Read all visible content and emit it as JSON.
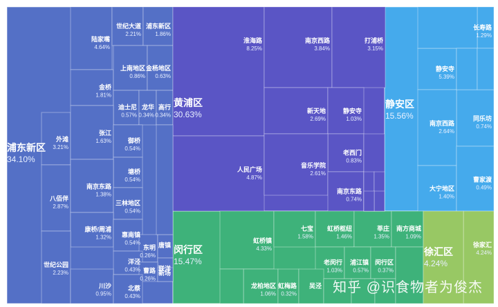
{
  "chart_data": {
    "type": "treemap",
    "groups": [
      {
        "name": "浦东新区",
        "value": "34.10%",
        "color": "#5470c6",
        "children": [
          {
            "name": "陆家嘴",
            "value": "4.64%"
          },
          {
            "name": "世纪大道",
            "value": "2.21%"
          },
          {
            "name": "浦东新区",
            "value": "1.86%"
          },
          {
            "name": "外滩",
            "value": "3.21%"
          },
          {
            "name": "金桥",
            "value": "1.81%"
          },
          {
            "name": "上南地区",
            "value": "0.86%"
          },
          {
            "name": "金杨地区",
            "value": "0.63%"
          },
          {
            "name": "迪士尼",
            "value": "0.57%"
          },
          {
            "name": "龙华",
            "value": "0.34%"
          },
          {
            "name": "高行",
            "value": "0.34%"
          },
          {
            "name": "张江",
            "value": "1.63%"
          },
          {
            "name": "御桥",
            "value": "0.54%"
          },
          {
            "name": "塘桥",
            "value": "0.54%"
          },
          {
            "name": "八佰伴",
            "value": "2.87%"
          },
          {
            "name": "南京东路",
            "value": "1.38%"
          },
          {
            "name": "三林地区",
            "value": "0.54%"
          },
          {
            "name": "康桥/周浦",
            "value": "1.32%"
          },
          {
            "name": "惠南镇",
            "value": "0.54%"
          },
          {
            "name": "东明",
            "value": "0.26%"
          },
          {
            "name": "唐镇",
            "value": ""
          },
          {
            "name": "洋泾",
            "value": "0.43%"
          },
          {
            "name": "联洋",
            "value": ""
          },
          {
            "name": "世纪公园",
            "value": "2.23%"
          },
          {
            "name": "曹路",
            "value": "0.26%"
          },
          {
            "name": "新场",
            "value": ""
          },
          {
            "name": "川沙",
            "value": "0.95%"
          },
          {
            "name": "北蔡",
            "value": "0.43%"
          }
        ]
      },
      {
        "name": "黄浦区",
        "value": "30.63%",
        "color": "#5a55c5",
        "children": [
          {
            "name": "淮海路",
            "value": "8.25%"
          },
          {
            "name": "南京西路",
            "value": "3.84%"
          },
          {
            "name": "打浦桥",
            "value": "3.15%"
          },
          {
            "name": "新天地",
            "value": "2.69%"
          },
          {
            "name": "静安寺",
            "value": "1.03%"
          },
          {
            "name": "老西门",
            "value": "0.83%"
          },
          {
            "name": "人民广场",
            "value": "4.87%"
          },
          {
            "name": "音乐学院",
            "value": "2.61%"
          },
          {
            "name": "南京东路",
            "value": "0.74%"
          }
        ]
      },
      {
        "name": "静安区",
        "value": "15.56%",
        "color": "#45aaec",
        "children": [
          {
            "name": "长寿路",
            "value": "1.29%"
          },
          {
            "name": "静安寺",
            "value": "5.39%"
          },
          {
            "name": "同乐坊",
            "value": "0.74%"
          },
          {
            "name": "南京西路",
            "value": "2.64%"
          },
          {
            "name": "大宁地区",
            "value": "1.40%"
          },
          {
            "name": "曹家渡",
            "value": "0.49%"
          }
        ]
      },
      {
        "name": "闵行区",
        "value": "15.47%",
        "color": "#3eb27a",
        "children": [
          {
            "name": "虹桥镇",
            "value": "4.33%"
          },
          {
            "name": "七宝",
            "value": "1.58%"
          },
          {
            "name": "虹桥枢纽",
            "value": "1.46%"
          },
          {
            "name": "莘庄",
            "value": "1.35%"
          },
          {
            "name": "南方商城",
            "value": "1.09%"
          },
          {
            "name": "老闵行",
            "value": "1.03%"
          },
          {
            "name": "浦江镇",
            "value": "0.57%"
          },
          {
            "name": "闵行区",
            "value": "0.37%"
          },
          {
            "name": "龙柏地区",
            "value": "1.06%"
          },
          {
            "name": "虹梅路",
            "value": "0.32%"
          },
          {
            "name": "吴泾",
            "value": ""
          }
        ]
      },
      {
        "name": "徐汇区",
        "value": "4.24%",
        "color": "#98c864",
        "children": [
          {
            "name": "徐家汇",
            "value": "4.24%"
          }
        ]
      }
    ]
  },
  "watermark": "知乎 @识食物者为俊杰"
}
